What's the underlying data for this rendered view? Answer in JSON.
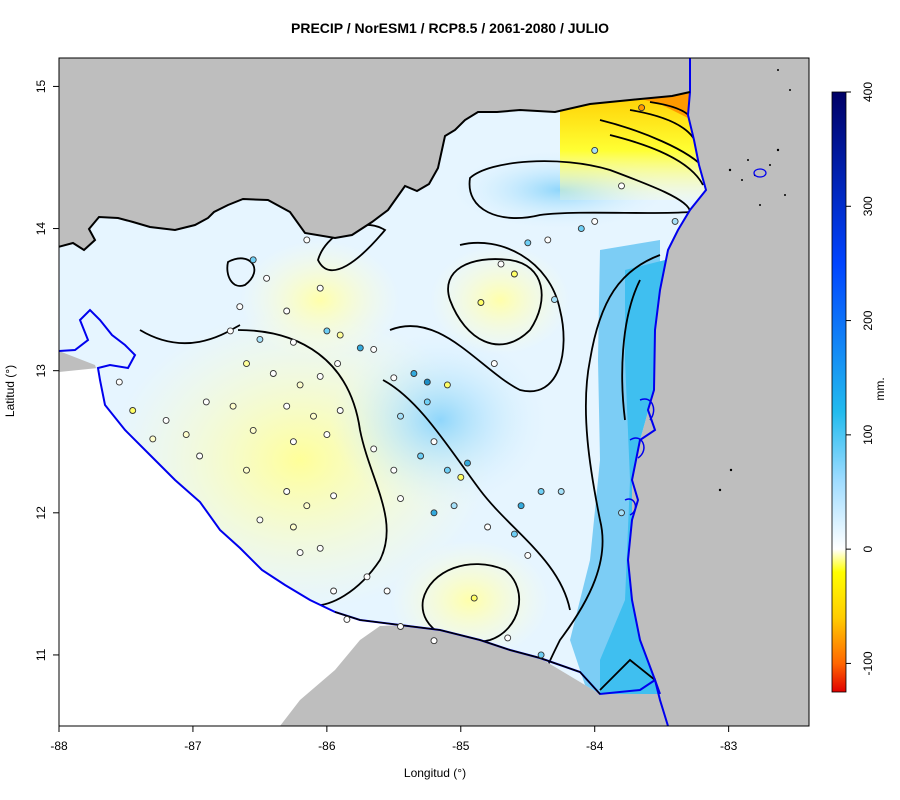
{
  "title": "PRECIP / NorESM1 / RCP8.5 / 2061-2080 / JULIO",
  "x_axis": {
    "label": "Longitud (°)",
    "ticks": [
      "-88",
      "-87",
      "-86",
      "-85",
      "-84",
      "-83"
    ],
    "range": [
      -88,
      -82.4
    ]
  },
  "y_axis": {
    "label": "Latitud (°)",
    "ticks": [
      "11",
      "12",
      "13",
      "14",
      "15"
    ],
    "range": [
      10.5,
      15.2
    ]
  },
  "colorbar": {
    "unit": "mm.",
    "ticks": [
      "-100",
      "0",
      "100",
      "200",
      "300",
      "400"
    ],
    "range": [
      -125,
      400
    ],
    "stops": [
      {
        "value": -125,
        "color": "#e00000"
      },
      {
        "value": -100,
        "color": "#ff6600"
      },
      {
        "value": -60,
        "color": "#ffcc00"
      },
      {
        "value": -20,
        "color": "#ffff00"
      },
      {
        "value": 0,
        "color": "#ffffff"
      },
      {
        "value": 60,
        "color": "#9fdcff"
      },
      {
        "value": 120,
        "color": "#22bbee"
      },
      {
        "value": 250,
        "color": "#0044ff"
      },
      {
        "value": 400,
        "color": "#000066"
      }
    ]
  },
  "colors": {
    "land_outside": "#bebebe",
    "ocean": "#ffffff",
    "coast": "#0000ee",
    "border": "#000000"
  },
  "stations": [
    {
      "lon": -86.55,
      "lat": 13.78,
      "color": "#6ecff6"
    },
    {
      "lon": -86.15,
      "lat": 13.92,
      "color": "#ffffff"
    },
    {
      "lon": -86.45,
      "lat": 13.65,
      "color": "#ffffff"
    },
    {
      "lon": -86.05,
      "lat": 13.58,
      "color": "#ffffff"
    },
    {
      "lon": -86.65,
      "lat": 13.45,
      "color": "#ffffff"
    },
    {
      "lon": -86.3,
      "lat": 13.42,
      "color": "#ffffff"
    },
    {
      "lon": -86.72,
      "lat": 13.28,
      "color": "#ffffff"
    },
    {
      "lon": -86.5,
      "lat": 13.22,
      "color": "#a6e1fa"
    },
    {
      "lon": -86.25,
      "lat": 13.2,
      "color": "#ffffff"
    },
    {
      "lon": -86.0,
      "lat": 13.28,
      "color": "#6ecff6"
    },
    {
      "lon": -85.9,
      "lat": 13.25,
      "color": "#ffff99"
    },
    {
      "lon": -85.75,
      "lat": 13.16,
      "color": "#33aadd"
    },
    {
      "lon": -85.92,
      "lat": 13.05,
      "color": "#ffffff"
    },
    {
      "lon": -86.6,
      "lat": 13.05,
      "color": "#ffff99"
    },
    {
      "lon": -86.4,
      "lat": 12.98,
      "color": "#ffffff"
    },
    {
      "lon": -86.2,
      "lat": 12.9,
      "color": "#ffffcc"
    },
    {
      "lon": -86.05,
      "lat": 12.96,
      "color": "#ffffff"
    },
    {
      "lon": -86.9,
      "lat": 12.78,
      "color": "#ffffff"
    },
    {
      "lon": -86.7,
      "lat": 12.75,
      "color": "#ffffcc"
    },
    {
      "lon": -86.3,
      "lat": 12.75,
      "color": "#ffffff"
    },
    {
      "lon": -86.1,
      "lat": 12.68,
      "color": "#ffffcc"
    },
    {
      "lon": -85.9,
      "lat": 12.72,
      "color": "#ffffff"
    },
    {
      "lon": -87.2,
      "lat": 12.65,
      "color": "#ffffff"
    },
    {
      "lon": -87.05,
      "lat": 12.55,
      "color": "#ffffcc"
    },
    {
      "lon": -86.55,
      "lat": 12.58,
      "color": "#ffffcc"
    },
    {
      "lon": -86.25,
      "lat": 12.5,
      "color": "#ffffff"
    },
    {
      "lon": -86.0,
      "lat": 12.55,
      "color": "#ffffff"
    },
    {
      "lon": -87.55,
      "lat": 12.92,
      "color": "#ffffff"
    },
    {
      "lon": -87.45,
      "lat": 12.72,
      "color": "#ffff66"
    },
    {
      "lon": -87.3,
      "lat": 12.52,
      "color": "#ffffcc"
    },
    {
      "lon": -86.95,
      "lat": 12.4,
      "color": "#ffffff"
    },
    {
      "lon": -86.6,
      "lat": 12.3,
      "color": "#ffffcc"
    },
    {
      "lon": -86.3,
      "lat": 12.15,
      "color": "#ffffff"
    },
    {
      "lon": -86.15,
      "lat": 12.05,
      "color": "#ffffcc"
    },
    {
      "lon": -85.95,
      "lat": 12.12,
      "color": "#ffffff"
    },
    {
      "lon": -86.5,
      "lat": 11.95,
      "color": "#ffffff"
    },
    {
      "lon": -86.25,
      "lat": 11.9,
      "color": "#ffffcc"
    },
    {
      "lon": -86.05,
      "lat": 11.75,
      "color": "#ffffff"
    },
    {
      "lon": -86.2,
      "lat": 11.72,
      "color": "#ffffff"
    },
    {
      "lon": -85.95,
      "lat": 11.45,
      "color": "#ffffff"
    },
    {
      "lon": -85.85,
      "lat": 11.25,
      "color": "#ffffff"
    },
    {
      "lon": -85.7,
      "lat": 11.55,
      "color": "#ffffff"
    },
    {
      "lon": -85.55,
      "lat": 11.45,
      "color": "#ffffff"
    },
    {
      "lon": -85.45,
      "lat": 11.2,
      "color": "#ffffff"
    },
    {
      "lon": -85.2,
      "lat": 11.1,
      "color": "#ffffff"
    },
    {
      "lon": -85.65,
      "lat": 12.45,
      "color": "#ffffff"
    },
    {
      "lon": -85.5,
      "lat": 12.3,
      "color": "#ffffff"
    },
    {
      "lon": -85.45,
      "lat": 12.1,
      "color": "#ffffff"
    },
    {
      "lon": -85.3,
      "lat": 12.4,
      "color": "#6ecff6"
    },
    {
      "lon": -85.2,
      "lat": 12.5,
      "color": "#ffffff"
    },
    {
      "lon": -85.1,
      "lat": 12.3,
      "color": "#6ecff6"
    },
    {
      "lon": -85.0,
      "lat": 12.25,
      "color": "#ffff66"
    },
    {
      "lon": -84.95,
      "lat": 12.35,
      "color": "#33aadd"
    },
    {
      "lon": -85.2,
      "lat": 12.0,
      "color": "#33aadd"
    },
    {
      "lon": -85.05,
      "lat": 12.05,
      "color": "#a6e1fa"
    },
    {
      "lon": -84.8,
      "lat": 11.9,
      "color": "#ffffff"
    },
    {
      "lon": -84.6,
      "lat": 11.85,
      "color": "#6ecff6"
    },
    {
      "lon": -84.5,
      "lat": 11.7,
      "color": "#ffffff"
    },
    {
      "lon": -84.4,
      "lat": 12.15,
      "color": "#6ecff6"
    },
    {
      "lon": -84.25,
      "lat": 12.15,
      "color": "#a6e1fa"
    },
    {
      "lon": -84.55,
      "lat": 12.05,
      "color": "#33aadd"
    },
    {
      "lon": -85.5,
      "lat": 12.95,
      "color": "#ffffff"
    },
    {
      "lon": -85.35,
      "lat": 12.98,
      "color": "#33aadd"
    },
    {
      "lon": -85.25,
      "lat": 12.78,
      "color": "#6ecff6"
    },
    {
      "lon": -85.25,
      "lat": 12.92,
      "color": "#1d8fc7"
    },
    {
      "lon": -85.1,
      "lat": 12.9,
      "color": "#ffff66"
    },
    {
      "lon": -85.45,
      "lat": 12.68,
      "color": "#a6e1fa"
    },
    {
      "lon": -85.65,
      "lat": 13.15,
      "color": "#ffffff"
    },
    {
      "lon": -84.85,
      "lat": 13.48,
      "color": "#ffff66"
    },
    {
      "lon": -84.6,
      "lat": 13.68,
      "color": "#ffff66"
    },
    {
      "lon": -84.7,
      "lat": 13.75,
      "color": "#ffffff"
    },
    {
      "lon": -84.75,
      "lat": 13.05,
      "color": "#ffffff"
    },
    {
      "lon": -84.3,
      "lat": 13.5,
      "color": "#a6e1fa"
    },
    {
      "lon": -84.5,
      "lat": 13.9,
      "color": "#6ecff6"
    },
    {
      "lon": -84.35,
      "lat": 13.92,
      "color": "#ffffff"
    },
    {
      "lon": -84.1,
      "lat": 14.0,
      "color": "#6ecff6"
    },
    {
      "lon": -84.0,
      "lat": 14.05,
      "color": "#ffffff"
    },
    {
      "lon": -84.0,
      "lat": 14.55,
      "color": "#a6e1fa"
    },
    {
      "lon": -83.8,
      "lat": 14.3,
      "color": "#ffffff"
    },
    {
      "lon": -83.4,
      "lat": 14.05,
      "color": "#a6e1fa"
    },
    {
      "lon": -83.65,
      "lat": 14.85,
      "color": "#ff9900"
    },
    {
      "lon": -84.4,
      "lat": 11.0,
      "color": "#6ecff6"
    },
    {
      "lon": -84.65,
      "lat": 11.12,
      "color": "#ffffff"
    },
    {
      "lon": -84.9,
      "lat": 11.4,
      "color": "#ffff66"
    },
    {
      "lon": -83.8,
      "lat": 12.0,
      "color": "#a6e1fa"
    }
  ]
}
